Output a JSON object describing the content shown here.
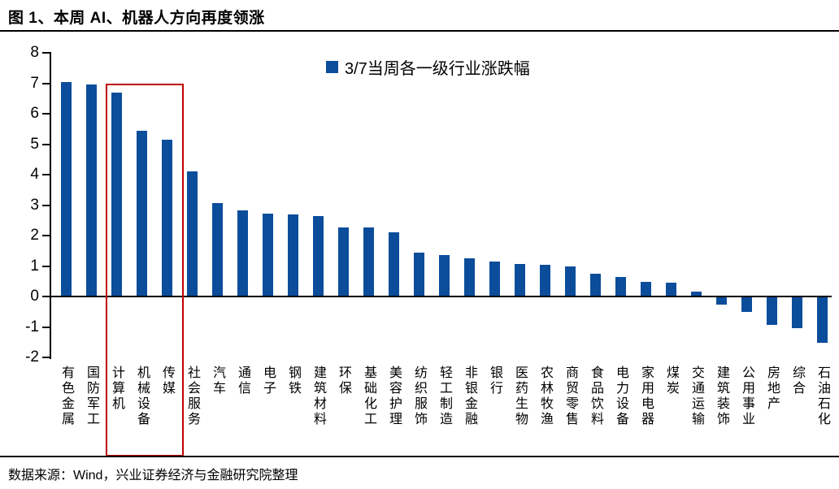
{
  "header": {
    "title": "图 1、本周 AI、机器人方向再度领涨"
  },
  "legend": {
    "label": "3/7当周各一级行业涨跌幅",
    "swatch_icon": "blue-square"
  },
  "footer": {
    "source": "数据来源：Wind，兴业证券经济与金融研究院整理"
  },
  "colors": {
    "bar": "#0B4D9B",
    "highlight_box": "#C00000",
    "axis": "#000000"
  },
  "chart_data": {
    "type": "bar",
    "title": "图 1、本周 AI、机器人方向再度领涨",
    "legend_entry": "3/7当周各一级行业涨跌幅",
    "categories": [
      "有色金属",
      "国防军工",
      "计算机",
      "机械设备",
      "传媒",
      "社会服务",
      "汽车",
      "通信",
      "电子",
      "钢铁",
      "建筑材料",
      "环保",
      "基础化工",
      "美容护理",
      "纺织服饰",
      "轻工制造",
      "非银金融",
      "银行",
      "医药生物",
      "农林牧渔",
      "商贸零售",
      "食品饮料",
      "电力设备",
      "家用电器",
      "煤炭",
      "交通运输",
      "建筑装饰",
      "公用事业",
      "房地产",
      "综合",
      "石油石化"
    ],
    "values": [
      7.05,
      6.95,
      6.7,
      5.45,
      5.15,
      4.12,
      3.07,
      2.82,
      2.73,
      2.7,
      2.63,
      2.28,
      2.26,
      2.1,
      1.45,
      1.36,
      1.25,
      1.15,
      1.08,
      1.05,
      0.98,
      0.74,
      0.64,
      0.47,
      0.45,
      0.16,
      -0.24,
      -0.47,
      -0.9,
      -1.0,
      -1.48
    ],
    "highlighted_categories": [
      "计算机",
      "机械设备",
      "传媒"
    ],
    "xlabel": "",
    "ylabel": "",
    "ylim": [
      -2,
      8
    ],
    "yticks": [
      8,
      7,
      6,
      5,
      4,
      3,
      2,
      1,
      0,
      -1,
      -2
    ],
    "grid": false,
    "legend_position": "top-center"
  }
}
